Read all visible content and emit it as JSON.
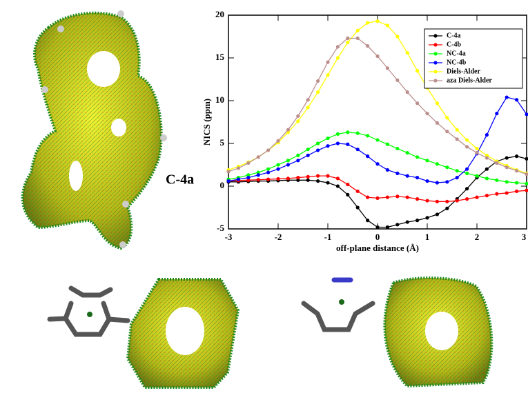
{
  "chart_data": {
    "type": "line",
    "xlabel": "off-plane distance (Å)",
    "ylabel": "NICS (ppm)",
    "annotation": "C-4a",
    "x": [
      -3,
      -2.8,
      -2.6,
      -2.4,
      -2.2,
      -2,
      -1.8,
      -1.6,
      -1.4,
      -1.2,
      -1,
      -0.8,
      -0.6,
      -0.4,
      -0.2,
      0,
      0.2,
      0.4,
      0.6,
      0.8,
      1,
      1.2,
      1.4,
      1.6,
      1.8,
      2,
      2.2,
      2.4,
      2.6,
      2.8,
      3
    ],
    "series": [
      {
        "name": "C-4a",
        "color": "#000000",
        "values": [
          0.5,
          0.5,
          0.55,
          0.6,
          0.6,
          0.65,
          0.7,
          0.7,
          0.7,
          0.6,
          0.4,
          0,
          -1,
          -2.5,
          -4,
          -4.8,
          -4.8,
          -4.5,
          -4.2,
          -4,
          -3.7,
          -3.3,
          -2.6,
          -1.5,
          -0.3,
          1,
          2,
          2.9,
          3.3,
          3.5,
          3.2
        ]
      },
      {
        "name": "C-4b",
        "color": "#ff0000",
        "values": [
          0.6,
          0.65,
          0.7,
          0.75,
          0.8,
          0.85,
          0.9,
          1.0,
          1.1,
          1.2,
          1.2,
          0.9,
          0.2,
          -0.6,
          -1.3,
          -1.4,
          -1.3,
          -1.2,
          -1.3,
          -1.5,
          -1.7,
          -1.8,
          -1.8,
          -1.7,
          -1.5,
          -1.3,
          -1.1,
          -0.9,
          -0.8,
          -0.6,
          -0.5
        ]
      },
      {
        "name": "NC-4a",
        "color": "#00ff00",
        "values": [
          0.8,
          1.0,
          1.3,
          1.6,
          2.0,
          2.5,
          3.0,
          3.6,
          4.3,
          5.0,
          5.6,
          6.1,
          6.3,
          6.2,
          5.9,
          5.4,
          4.9,
          4.4,
          3.9,
          3.4,
          3.0,
          2.6,
          2.2,
          1.8,
          1.5,
          1.2,
          0.9,
          0.7,
          0.5,
          0.4,
          0.3
        ]
      },
      {
        "name": "NC-4b",
        "color": "#0000ff",
        "values": [
          0.6,
          0.8,
          1.0,
          1.3,
          1.6,
          2.0,
          2.5,
          3.0,
          3.6,
          4.2,
          4.7,
          5.0,
          4.9,
          4.3,
          3.5,
          2.6,
          1.9,
          1.5,
          1.2,
          1.0,
          0.6,
          0.4,
          0.5,
          1.0,
          2.0,
          3.8,
          6.0,
          8.5,
          10.4,
          10.1,
          8.4
        ]
      },
      {
        "name": "Diels-Alder",
        "color": "#ffff00",
        "values": [
          1.9,
          2.3,
          2.8,
          3.4,
          4.2,
          5.1,
          6.3,
          7.6,
          9.2,
          11.0,
          13.0,
          15.0,
          16.8,
          18.2,
          19.1,
          19.3,
          18.8,
          17.5,
          15.6,
          13.5,
          11.5,
          9.7,
          8.0,
          6.6,
          5.4,
          4.4,
          3.6,
          2.9,
          2.4,
          1.9,
          1.5
        ]
      },
      {
        "name": "aza Diels-Alder",
        "color": "#bc8f8f",
        "values": [
          1.7,
          2.1,
          2.7,
          3.4,
          4.2,
          5.3,
          6.6,
          8.2,
          10.1,
          12.3,
          14.5,
          16.3,
          17.3,
          17.3,
          16.4,
          15.2,
          13.8,
          12.4,
          11.0,
          9.7,
          8.5,
          7.4,
          6.4,
          5.5,
          4.6,
          3.9,
          3.3,
          2.7,
          2.2,
          1.8,
          1.4
        ]
      }
    ],
    "xlim": [
      -3,
      3
    ],
    "ylim": [
      -5,
      20
    ],
    "xticks": [
      -3,
      -2,
      -1,
      0,
      1,
      2,
      3
    ],
    "yticks": [
      -5,
      0,
      5,
      10,
      15,
      20
    ],
    "grid": false,
    "legend": "upper right"
  }
}
